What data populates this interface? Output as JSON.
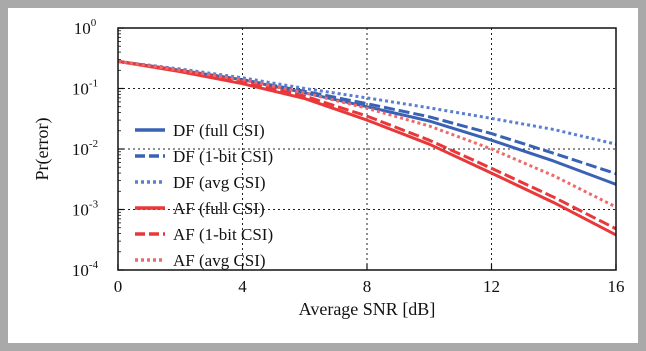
{
  "chart_data": {
    "type": "line",
    "title": "",
    "xlabel": "Average SNR [dB]",
    "ylabel": "Pr(error)",
    "xlim": [
      0,
      16
    ],
    "ylim": [
      0.0001,
      1
    ],
    "yscale": "log",
    "grid": true,
    "legend_position": "center-left",
    "xticks": [
      0,
      4,
      8,
      12,
      16
    ],
    "yticks": [
      {
        "base": "10",
        "exp": "0"
      },
      {
        "base": "10",
        "exp": "-1"
      },
      {
        "base": "10",
        "exp": "-2"
      },
      {
        "base": "10",
        "exp": "-3"
      },
      {
        "base": "10",
        "exp": "-4"
      }
    ],
    "series": [
      {
        "name": "DF (full CSI)",
        "color": "#3a62b4",
        "style": "solid",
        "x": [
          0,
          2,
          4,
          6,
          8,
          10,
          12,
          14,
          16
        ],
        "y": [
          0.28,
          0.2,
          0.14,
          0.085,
          0.05,
          0.029,
          0.014,
          0.0063,
          0.0026
        ]
      },
      {
        "name": "DF (1-bit CSI)",
        "color": "#3a62b4",
        "style": "dashed",
        "x": [
          0,
          2,
          4,
          6,
          8,
          10,
          12,
          14,
          16
        ],
        "y": [
          0.28,
          0.2,
          0.14,
          0.09,
          0.056,
          0.034,
          0.018,
          0.0085,
          0.0039
        ]
      },
      {
        "name": "DF (avg CSI)",
        "color": "#5a7fd0",
        "style": "dotted",
        "x": [
          0,
          2,
          4,
          6,
          8,
          10,
          12,
          14,
          16
        ],
        "y": [
          0.28,
          0.21,
          0.15,
          0.1,
          0.07,
          0.048,
          0.032,
          0.021,
          0.012
        ]
      },
      {
        "name": "AF (full CSI)",
        "color": "#e8383a",
        "style": "solid",
        "x": [
          0,
          2,
          4,
          6,
          8,
          10,
          12,
          14,
          16
        ],
        "y": [
          0.28,
          0.19,
          0.12,
          0.068,
          0.03,
          0.012,
          0.004,
          0.0013,
          0.00038
        ]
      },
      {
        "name": "AF (1-bit CSI)",
        "color": "#e8383a",
        "style": "dashed",
        "x": [
          0,
          2,
          4,
          6,
          8,
          10,
          12,
          14,
          16
        ],
        "y": [
          0.28,
          0.2,
          0.13,
          0.075,
          0.035,
          0.014,
          0.0048,
          0.0016,
          0.00048
        ]
      },
      {
        "name": "AF (avg CSI)",
        "color": "#ee6a6a",
        "style": "dotted",
        "x": [
          0,
          2,
          4,
          6,
          8,
          10,
          12,
          14,
          16
        ],
        "y": [
          0.28,
          0.2,
          0.14,
          0.085,
          0.047,
          0.024,
          0.01,
          0.0036,
          0.0011
        ]
      }
    ]
  }
}
